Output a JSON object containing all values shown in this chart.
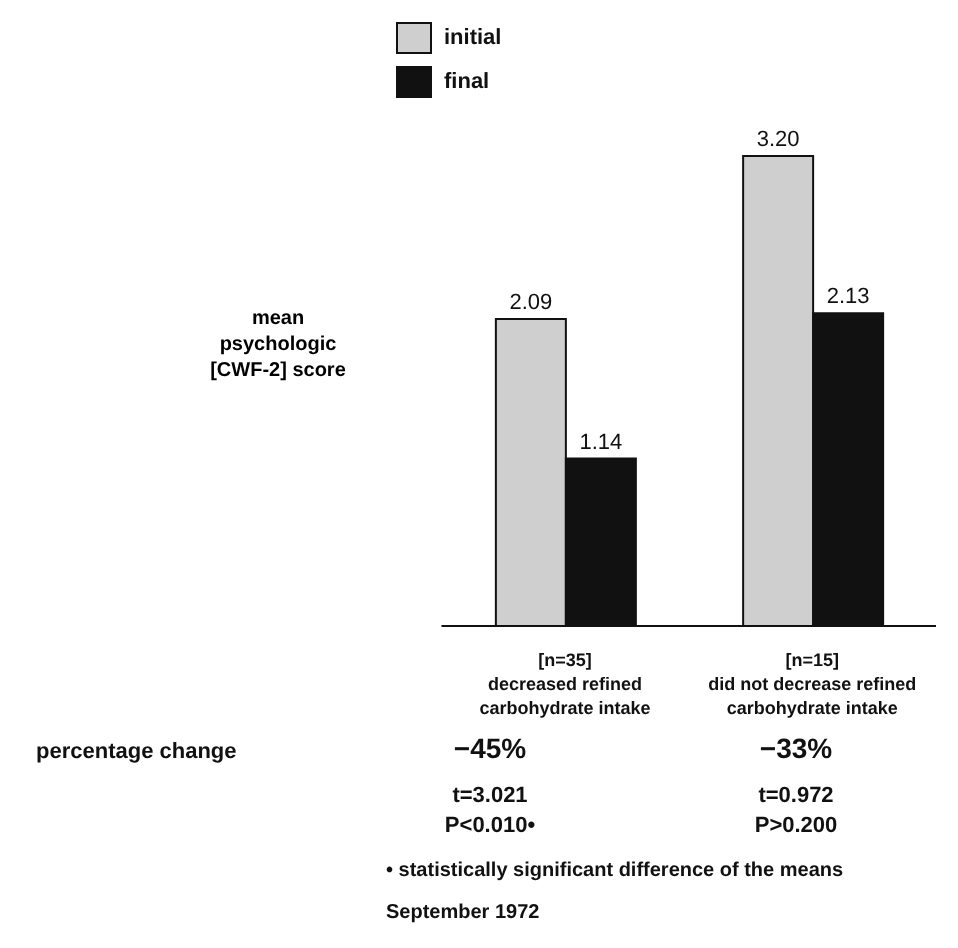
{
  "chart_data": {
    "type": "bar",
    "ylabel": "mean psychologic [CWF-2] score",
    "categories": [
      "[n=35]\ndecreased refined\ncarbohydrate intake",
      "[n=15]\ndid not decrease refined\ncarbohydrate intake"
    ],
    "series": [
      {
        "name": "initial",
        "color": "#cfcfcf",
        "values": [
          2.09,
          3.2
        ],
        "value_labels": [
          "2.09",
          "3.20"
        ]
      },
      {
        "name": "final",
        "color": "#111111",
        "values": [
          1.14,
          2.13
        ],
        "value_labels": [
          "1.14",
          "2.13"
        ]
      }
    ],
    "legend": "top left",
    "annotations": [
      "percentage change",
      "−45%",
      "−33%",
      "t=3.021",
      "P<0.010•",
      "t=0.972",
      "P>0.200",
      "• statistically significant difference of the means",
      "September 1972"
    ]
  }
}
